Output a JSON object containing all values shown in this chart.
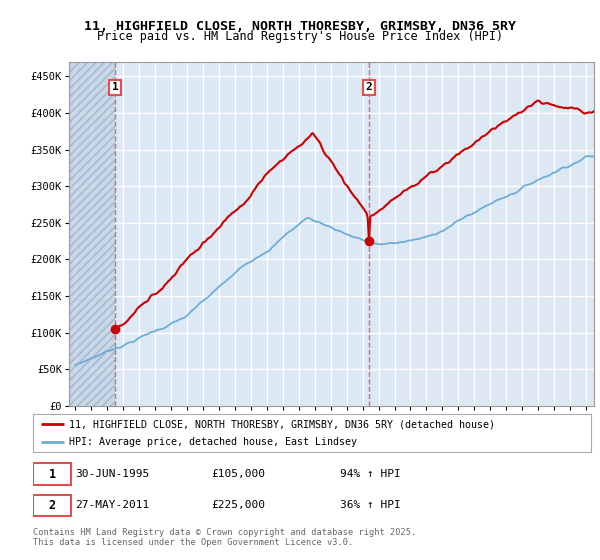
{
  "title_line1": "11, HIGHFIELD CLOSE, NORTH THORESBY, GRIMSBY, DN36 5RY",
  "title_line2": "Price paid vs. HM Land Registry's House Price Index (HPI)",
  "legend_line1": "11, HIGHFIELD CLOSE, NORTH THORESBY, GRIMSBY, DN36 5RY (detached house)",
  "legend_line2": "HPI: Average price, detached house, East Lindsey",
  "annotation1_date": "30-JUN-1995",
  "annotation1_price": "£105,000",
  "annotation1_hpi": "94% ↑ HPI",
  "annotation2_date": "27-MAY-2011",
  "annotation2_price": "£225,000",
  "annotation2_hpi": "36% ↑ HPI",
  "footer": "Contains HM Land Registry data © Crown copyright and database right 2025.\nThis data is licensed under the Open Government Licence v3.0.",
  "sale1_x": 1995.5,
  "sale1_y": 105000,
  "sale2_x": 2011.4,
  "sale2_y": 225000,
  "hpi_color": "#6baed6",
  "price_color": "#cc0000",
  "vline_color": "#e05050",
  "background_color": "#ffffff",
  "plot_bg_color": "#dde8f5",
  "hatch_color": "#c0cfe0",
  "grid_color": "#ffffff",
  "ylim": [
    0,
    470000
  ],
  "yticks": [
    0,
    50000,
    100000,
    150000,
    200000,
    250000,
    300000,
    350000,
    400000,
    450000
  ],
  "ytick_labels": [
    "£0",
    "£50K",
    "£100K",
    "£150K",
    "£200K",
    "£250K",
    "£300K",
    "£350K",
    "£400K",
    "£450K"
  ],
  "xlim_start": 1992.6,
  "xlim_end": 2025.5
}
